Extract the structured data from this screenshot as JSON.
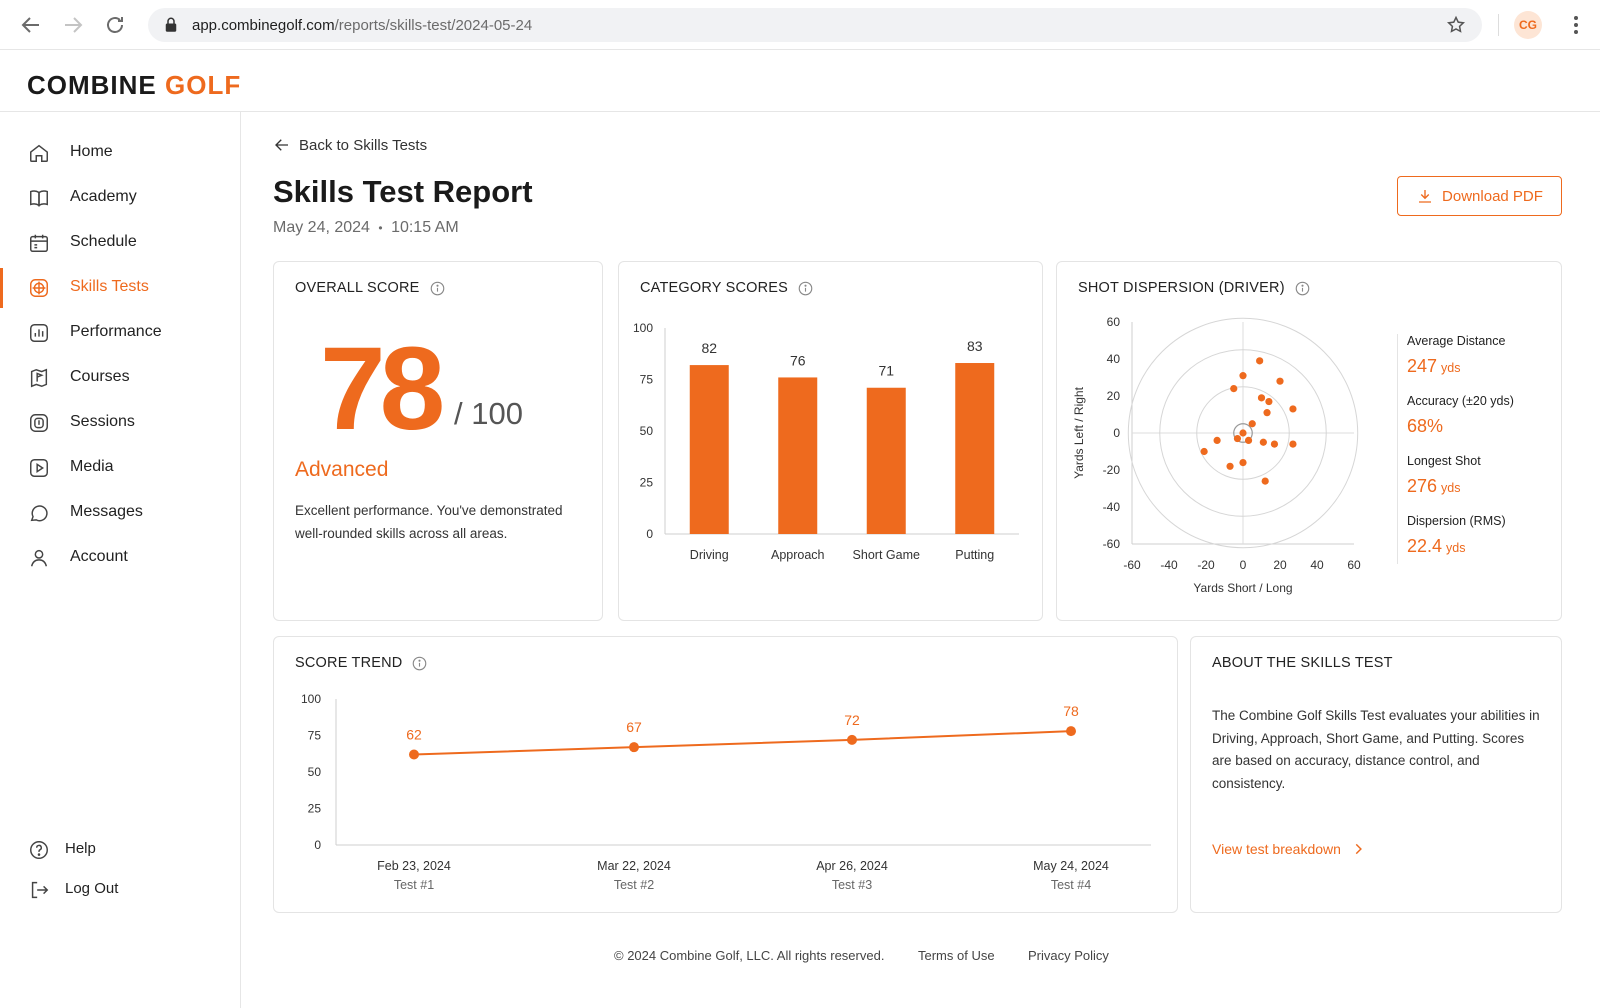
{
  "browser": {
    "url_host": "app.combinegolf.com",
    "url_path": "/reports/skills-test/2024-05-24",
    "profile_initials": "CG"
  },
  "brand": {
    "word1": "COMBINE",
    "word2": "GOLF",
    "accent": "#ee6a1e"
  },
  "sidebar": {
    "items": [
      {
        "label": "Home",
        "icon": "home-icon"
      },
      {
        "label": "Academy",
        "icon": "book-icon"
      },
      {
        "label": "Schedule",
        "icon": "calendar-icon"
      },
      {
        "label": "Skills Tests",
        "icon": "target-grid-icon",
        "active": true
      },
      {
        "label": "Performance",
        "icon": "bar-chart-icon"
      },
      {
        "label": "Courses",
        "icon": "flag-map-icon"
      },
      {
        "label": "Sessions",
        "icon": "session-icon"
      },
      {
        "label": "Media",
        "icon": "play-icon"
      },
      {
        "label": "Messages",
        "icon": "chat-icon"
      },
      {
        "label": "Account",
        "icon": "user-icon"
      }
    ],
    "bottom": [
      {
        "label": "Help",
        "icon": "help-icon"
      },
      {
        "label": "Log Out",
        "icon": "logout-icon"
      }
    ]
  },
  "page": {
    "back_label": "Back to Skills Tests",
    "title": "Skills Test Report",
    "date": "May 24, 2024",
    "separator": "•",
    "time": "10:15 AM",
    "download_label": "Download PDF"
  },
  "overall": {
    "title": "OVERALL SCORE",
    "score": "78",
    "out_of": "/ 100",
    "level": "Advanced",
    "description": "Excellent performance. You've demonstrated well-rounded skills across all areas."
  },
  "category_card": {
    "title": "CATEGORY SCORES"
  },
  "dispersion": {
    "title": "SHOT DISPERSION (DRIVER)",
    "stats": [
      {
        "label": "Average Distance",
        "value": "247",
        "unit": "yds"
      },
      {
        "label": "Accuracy (±20 yds)",
        "value": "68%",
        "unit": ""
      },
      {
        "label": "Longest Shot",
        "value": "276",
        "unit": "yds"
      },
      {
        "label": "Dispersion (RMS)",
        "value": "22.4",
        "unit": "yds"
      }
    ]
  },
  "trend_card": {
    "title": "SCORE TREND"
  },
  "about": {
    "title": "ABOUT THE SKILLS TEST",
    "text": "The Combine Golf Skills Test evaluates your abilities in Driving, Approach, Short Game, and Putting. Scores are based on accuracy, distance control, and consistency.",
    "link": "View test breakdown"
  },
  "footer": {
    "copyright": "© 2024 Combine Golf, LLC. All rights reserved.",
    "terms": "Terms of Use",
    "privacy": "Privacy Policy"
  },
  "chart_data": [
    {
      "type": "bar",
      "title": "CATEGORY SCORES",
      "categories": [
        "Driving",
        "Approach",
        "Short Game",
        "Putting"
      ],
      "values": [
        82,
        76,
        71,
        83
      ],
      "ylim": [
        0,
        100
      ],
      "yticks": [
        0,
        25,
        50,
        75,
        100
      ],
      "color": "#ee6a1e"
    },
    {
      "type": "scatter",
      "title": "SHOT DISPERSION (DRIVER)",
      "xlabel": "Yards Short / Long",
      "ylabel": "Yards Left / Right",
      "xlim": [
        -60,
        60
      ],
      "ylim": [
        -60,
        60
      ],
      "xticks": [
        -60,
        -40,
        -20,
        0,
        20,
        40,
        60
      ],
      "yticks": [
        60,
        40,
        20,
        0,
        -20,
        -40,
        -60
      ],
      "rings": [
        5,
        25,
        45,
        62
      ],
      "points": [
        [
          9,
          39
        ],
        [
          0,
          31
        ],
        [
          -5,
          24
        ],
        [
          20,
          28
        ],
        [
          10,
          19
        ],
        [
          14,
          17
        ],
        [
          27,
          13
        ],
        [
          13,
          11
        ],
        [
          5,
          5
        ],
        [
          0,
          0
        ],
        [
          -3,
          -3
        ],
        [
          3,
          -4
        ],
        [
          11,
          -5
        ],
        [
          -14,
          -4
        ],
        [
          17,
          -6
        ],
        [
          27,
          -6
        ],
        [
          -21,
          -10
        ],
        [
          0,
          -16
        ],
        [
          -7,
          -18
        ],
        [
          12,
          -26
        ]
      ],
      "color": "#ee6a1e"
    },
    {
      "type": "line",
      "title": "SCORE TREND",
      "x": [
        "Feb 23, 2024",
        "Mar 22, 2024",
        "Apr 26, 2024",
        "May 24, 2024"
      ],
      "x_sub": [
        "Test #1",
        "Test #2",
        "Test #3",
        "Test #4"
      ],
      "values": [
        62,
        67,
        72,
        78
      ],
      "ylim": [
        0,
        100
      ],
      "yticks": [
        0,
        25,
        50,
        75,
        100
      ],
      "color": "#ee6a1e"
    }
  ]
}
